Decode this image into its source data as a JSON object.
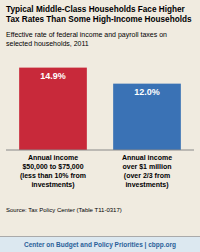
{
  "chart_data": {
    "type": "bar",
    "title": "Typical Middle-Class Households Face Higher\nTax Rates Than Some High-Income Households",
    "subtitle": "Effective rate of federal income and payroll taxes on\nselected households, 2011",
    "categories": [
      "Annual income\n$50,000 to $75,000\n(less than 10% from\ninvestments)",
      "Annual income\nover $1 million\n(over 2/3 from\ninvestments)"
    ],
    "values": [
      14.9,
      12.0
    ],
    "value_labels": [
      "14.9%",
      "12.0%"
    ],
    "colors": [
      "#c8293a",
      "#3a72b5"
    ],
    "data_labels": true,
    "ylim": [
      0,
      17
    ],
    "tick_labels": "x",
    "source": "Source: Tax Policy Center (Table T11-0317)",
    "footer": "Center on Budget and Policy Priorities | cbpp.org"
  }
}
